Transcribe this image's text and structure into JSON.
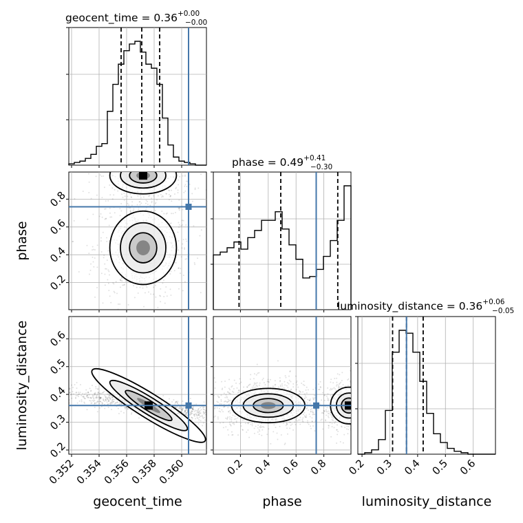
{
  "chart_data": {
    "type": "corner",
    "parameters": [
      "geocent_time",
      "phase",
      "luminosity_distance"
    ],
    "injection": {
      "geocent_time": 0.3605,
      "phase": 0.745,
      "luminosity_distance": 0.36
    },
    "colors": {
      "hist": "#000000",
      "truth": "#4477aa",
      "grid": "#b0b0b0",
      "density": "#000000"
    },
    "grid": true,
    "titles": [
      {
        "param": "geocent_time",
        "text": "geocent_time = 0.36",
        "sup": "+0.00",
        "sub": "−0.00"
      },
      {
        "param": "phase",
        "text": "phase = 0.49",
        "sup": "+0.41",
        "sub": "−0.30"
      },
      {
        "param": "luminosity_distance",
        "text": "luminosity_distance = 0.36",
        "sup": "+0.06",
        "sub": "−0.05"
      }
    ],
    "axis_labels": {
      "x": [
        "geocent_time",
        "phase",
        "luminosity_distance"
      ],
      "y": [
        "phase",
        "luminosity_distance"
      ]
    },
    "x_ticks": {
      "geocent_time": [
        "0.352",
        "0.354",
        "0.356",
        "0.358",
        "0.360"
      ],
      "phase": [
        "0.2",
        "0.4",
        "0.6",
        "0.8"
      ],
      "luminosity_distance": [
        "0.2",
        "0.3",
        "0.4",
        "0.5",
        "0.6"
      ]
    },
    "y_ticks": {
      "phase": [
        "0.2",
        "0.4",
        "0.6",
        "0.8"
      ],
      "luminosity_distance": [
        "0.2",
        "0.3",
        "0.4",
        "0.5",
        "0.6"
      ]
    },
    "ranges": {
      "geocent_time": [
        0.3518,
        0.3618
      ],
      "phase": [
        0.005,
        0.995
      ],
      "luminosity_distance": [
        0.185,
        0.68
      ]
    },
    "quantiles": {
      "geocent_time": [
        0.3556,
        0.3571,
        0.3584
      ],
      "phase": [
        0.19,
        0.49,
        0.9
      ],
      "luminosity_distance": [
        0.31,
        0.36,
        0.42
      ]
    },
    "histograms": {
      "geocent_time": {
        "edges": [
          0.3518,
          0.3522,
          0.3526,
          0.353,
          0.3534,
          0.3538,
          0.3542,
          0.3546,
          0.355,
          0.3554,
          0.3558,
          0.3562,
          0.3566,
          0.357,
          0.3574,
          0.3578,
          0.3582,
          0.3586,
          0.359,
          0.3594,
          0.3598,
          0.3602,
          0.3606,
          0.361,
          0.3614,
          0.3618
        ],
        "counts": [
          1,
          2,
          3,
          5,
          8,
          14,
          16,
          40,
          60,
          75,
          85,
          90,
          92,
          84,
          75,
          72,
          60,
          35,
          15,
          6,
          3,
          2,
          1,
          0,
          0
        ]
      },
      "phase": {
        "edges": [
          0.005,
          0.0545,
          0.104,
          0.1535,
          0.203,
          0.2525,
          0.302,
          0.3515,
          0.401,
          0.4505,
          0.5,
          0.5495,
          0.599,
          0.6485,
          0.698,
          0.7475,
          0.797,
          0.8465,
          0.896,
          0.9455,
          0.995
        ],
        "counts": [
          38,
          40,
          43,
          47,
          42,
          50,
          55,
          62,
          62,
          68,
          56,
          45,
          35,
          22,
          23,
          28,
          37,
          48,
          62,
          86
        ]
      },
      "luminosity_distance": {
        "edges": [
          0.185,
          0.2098,
          0.2345,
          0.2593,
          0.284,
          0.3088,
          0.3335,
          0.3583,
          0.383,
          0.4078,
          0.4325,
          0.4573,
          0.482,
          0.5068,
          0.5315,
          0.5563,
          0.581,
          0.6058,
          0.6305,
          0.6553,
          0.68
        ],
        "counts": [
          0,
          1,
          3,
          10,
          30,
          70,
          85,
          83,
          70,
          50,
          28,
          14,
          8,
          4,
          2,
          1,
          0,
          0,
          0,
          0
        ]
      }
    }
  }
}
